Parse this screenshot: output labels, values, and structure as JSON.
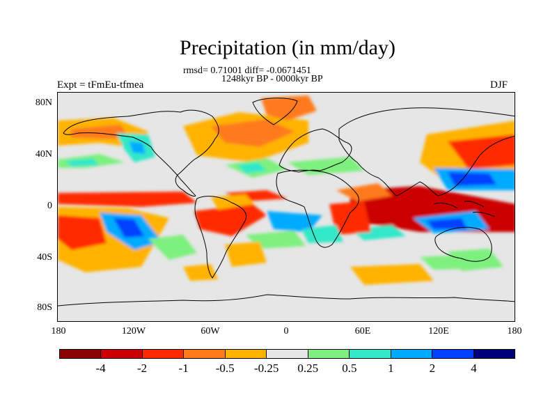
{
  "title": "Precipitation (in mm/day)",
  "stats_text": "rmsd= 0.71001 diff= -0.0671451",
  "period_text": "1248kyr BP - 0000kyr BP",
  "expt_text": "Expt = tFmEu-tfmea",
  "season": "DJF",
  "map": {
    "projection": "cylindrical-equidistant",
    "lon_range": [
      -180,
      180
    ],
    "lat_range": [
      -90,
      90
    ],
    "x_ticks": [
      "180",
      "120W",
      "60W",
      "0",
      "60E",
      "120E",
      "180"
    ],
    "y_ticks": [
      "80N",
      "40N",
      "0",
      "40S",
      "80S"
    ],
    "background_color": "#e6e6e6"
  },
  "colorbar": {
    "colors": [
      "#8b0000",
      "#cc0000",
      "#ff2a00",
      "#ff7a1a",
      "#ffb300",
      "#e6e6e6",
      "#7ef07e",
      "#33e8c8",
      "#00aaff",
      "#0040ff",
      "#00007a"
    ],
    "labels": [
      "-4",
      "-2",
      "-1",
      "-0.5",
      "-0.25",
      "0.25",
      "0.5",
      "1",
      "2",
      "4"
    ]
  }
}
